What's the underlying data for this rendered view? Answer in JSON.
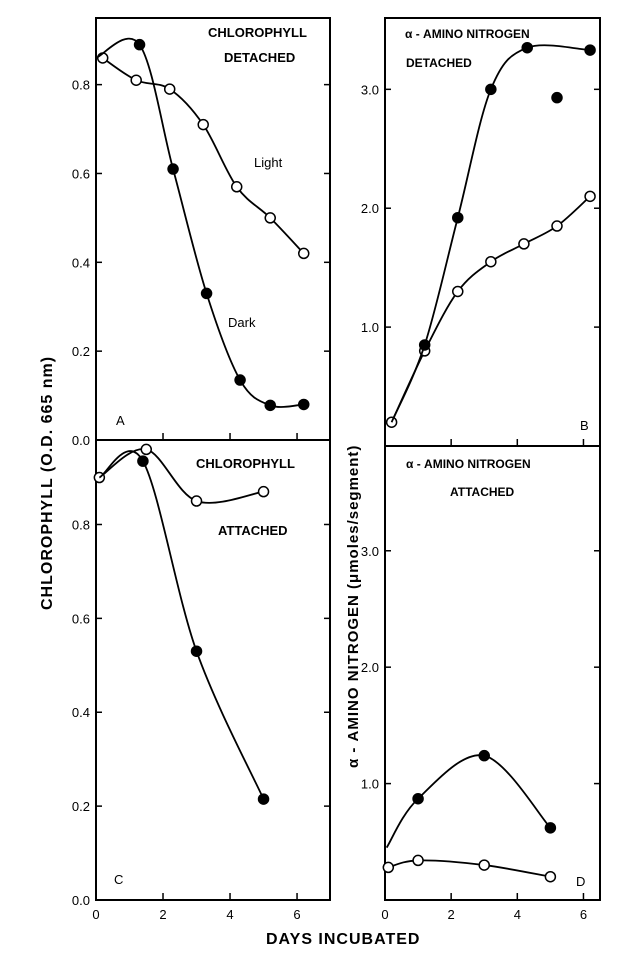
{
  "shared": {
    "ylabel_left": "CHLOROPHYLL  (O.D. 665 nm)",
    "ylabel_right": "α - AMINO NITROGEN  (μmoles/segment)",
    "xlabel": "DAYS INCUBATED",
    "x_ticks": [
      "0",
      "2",
      "4",
      "6"
    ],
    "chl_ticks": [
      "0.0",
      "0.2",
      "0.4",
      "0.6",
      "0.8"
    ],
    "amino_ticks_top": [
      "1.0",
      "2.0",
      "3.0"
    ],
    "amino_ticks_bottom": [
      "1.0",
      "2.0",
      "3.0"
    ]
  },
  "chart_data": [
    {
      "panel": "A",
      "type": "line",
      "title": "CHLOROPHYLL",
      "subtitle": "DETACHED",
      "ylim": [
        0,
        0.95
      ],
      "xlim": [
        0,
        6.5
      ],
      "series": [
        {
          "name": "Light",
          "marker": "open",
          "points": [
            [
              0.2,
              0.86
            ],
            [
              1.2,
              0.81
            ],
            [
              2.2,
              0.79
            ],
            [
              3.2,
              0.71
            ],
            [
              4.2,
              0.57
            ],
            [
              5.2,
              0.5
            ],
            [
              6.2,
              0.42
            ]
          ]
        },
        {
          "name": "Dark",
          "marker": "filled",
          "points": [
            [
              1.3,
              0.89
            ],
            [
              2.3,
              0.61
            ],
            [
              3.3,
              0.33
            ],
            [
              4.3,
              0.135
            ],
            [
              5.2,
              0.078
            ],
            [
              6.2,
              0.08
            ]
          ]
        }
      ]
    },
    {
      "panel": "B",
      "type": "line",
      "title": "α - AMINO NITROGEN",
      "subtitle": "DETACHED",
      "ylim": [
        0,
        3.6
      ],
      "xlim": [
        0,
        6.5
      ],
      "series": [
        {
          "marker": "open",
          "points": [
            [
              0.2,
              0.2
            ],
            [
              1.2,
              0.8
            ],
            [
              2.2,
              1.3
            ],
            [
              3.2,
              1.55
            ],
            [
              4.2,
              1.7
            ],
            [
              5.2,
              1.85
            ],
            [
              6.2,
              2.1
            ]
          ]
        },
        {
          "marker": "filled",
          "points": [
            [
              1.2,
              0.85
            ],
            [
              2.2,
              1.92
            ],
            [
              3.2,
              3.0
            ],
            [
              4.3,
              3.35
            ],
            [
              5.2,
              2.93
            ],
            [
              6.2,
              3.33
            ]
          ]
        }
      ]
    },
    {
      "panel": "C",
      "type": "line",
      "title": "CHLOROPHYLL",
      "subtitle": "ATTACHED",
      "ylim": [
        0,
        0.98
      ],
      "xlim": [
        0,
        6.5
      ],
      "series": [
        {
          "marker": "open",
          "points": [
            [
              0.1,
              0.9
            ],
            [
              1.5,
              0.96
            ],
            [
              3.0,
              0.85
            ],
            [
              5.0,
              0.87
            ]
          ]
        },
        {
          "marker": "filled",
          "points": [
            [
              1.4,
              0.935
            ],
            [
              3.0,
              0.53
            ],
            [
              5.0,
              0.215
            ]
          ]
        }
      ]
    },
    {
      "panel": "D",
      "type": "line",
      "title": "α - AMINO NITROGEN",
      "subtitle": "ATTACHED",
      "ylim": [
        0,
        3.9
      ],
      "xlim": [
        0,
        6.5
      ],
      "series": [
        {
          "marker": "open",
          "points": [
            [
              0.1,
              0.28
            ],
            [
              1.0,
              0.34
            ],
            [
              3.0,
              0.3
            ],
            [
              5.0,
              0.2
            ]
          ]
        },
        {
          "marker": "filled",
          "points": [
            [
              1.0,
              0.87
            ],
            [
              3.0,
              1.24
            ],
            [
              5.0,
              0.62
            ]
          ]
        }
      ]
    }
  ]
}
